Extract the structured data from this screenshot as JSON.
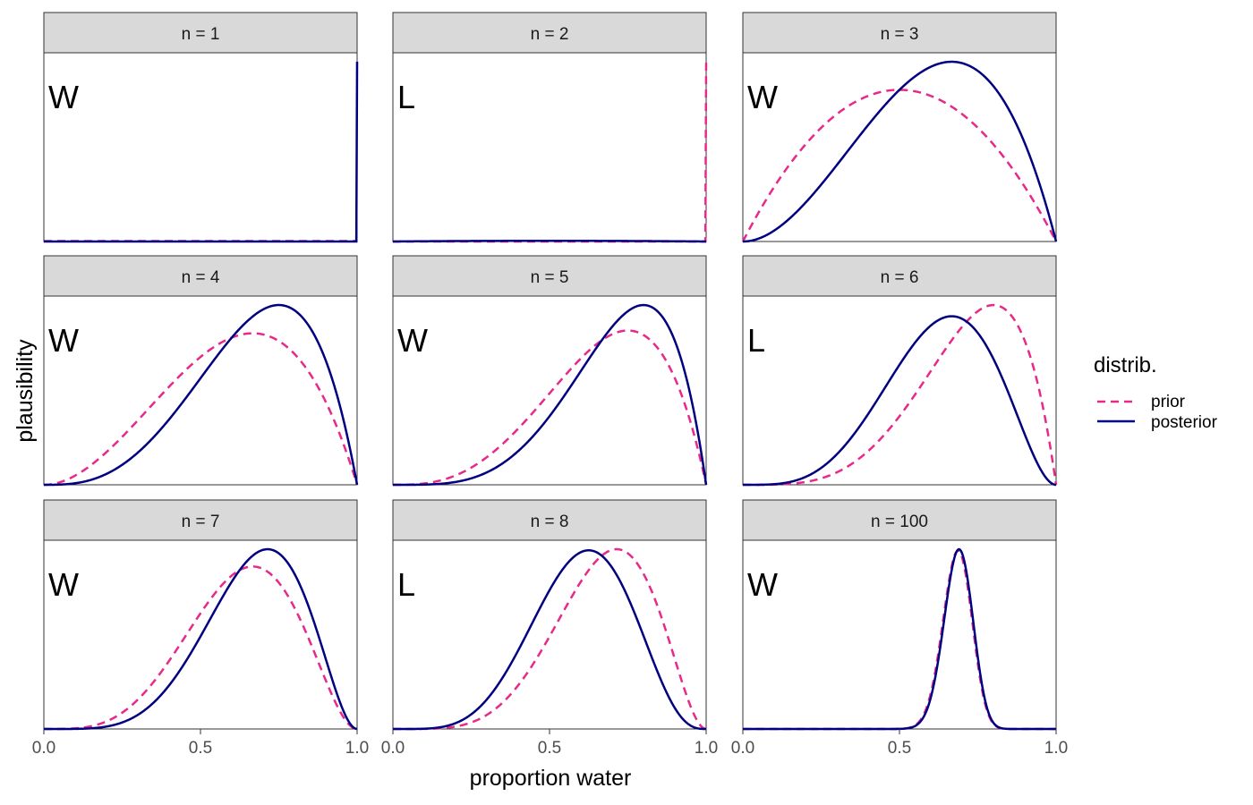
{
  "chart_data": {
    "type": "line",
    "xlabel": "proportion water",
    "ylabel": "plausibility",
    "xlim": [
      0,
      1
    ],
    "x_ticks": [
      "0.0",
      "0.5",
      "1.0"
    ],
    "grid": false,
    "legend": {
      "title": "distrib.",
      "placement": "right",
      "entries": [
        {
          "name": "prior",
          "style": "dashed",
          "color": "#e7298a"
        },
        {
          "name": "posterior",
          "style": "solid",
          "color": "#000080"
        }
      ]
    },
    "facets": [
      {
        "label": "n = 1",
        "toss": "W",
        "prior": {
          "w": 0,
          "l": 0
        },
        "posterior": {
          "w": 1,
          "l": 0
        }
      },
      {
        "label": "n = 2",
        "toss": "L",
        "prior": {
          "w": 1,
          "l": 0
        },
        "posterior": {
          "w": 1,
          "l": 1
        }
      },
      {
        "label": "n = 3",
        "toss": "W",
        "prior": {
          "w": 1,
          "l": 1
        },
        "posterior": {
          "w": 2,
          "l": 1
        }
      },
      {
        "label": "n = 4",
        "toss": "W",
        "prior": {
          "w": 2,
          "l": 1
        },
        "posterior": {
          "w": 3,
          "l": 1
        }
      },
      {
        "label": "n = 5",
        "toss": "W",
        "prior": {
          "w": 3,
          "l": 1
        },
        "posterior": {
          "w": 4,
          "l": 1
        }
      },
      {
        "label": "n = 6",
        "toss": "L",
        "prior": {
          "w": 4,
          "l": 1
        },
        "posterior": {
          "w": 4,
          "l": 2
        }
      },
      {
        "label": "n = 7",
        "toss": "W",
        "prior": {
          "w": 4,
          "l": 2
        },
        "posterior": {
          "w": 5,
          "l": 2
        }
      },
      {
        "label": "n = 8",
        "toss": "L",
        "prior": {
          "w": 5,
          "l": 2
        },
        "posterior": {
          "w": 5,
          "l": 3
        }
      },
      {
        "label": "n = 100",
        "toss": "W",
        "prior": {
          "w": 68,
          "l": 31
        },
        "posterior": {
          "w": 69,
          "l": 31
        }
      }
    ]
  }
}
